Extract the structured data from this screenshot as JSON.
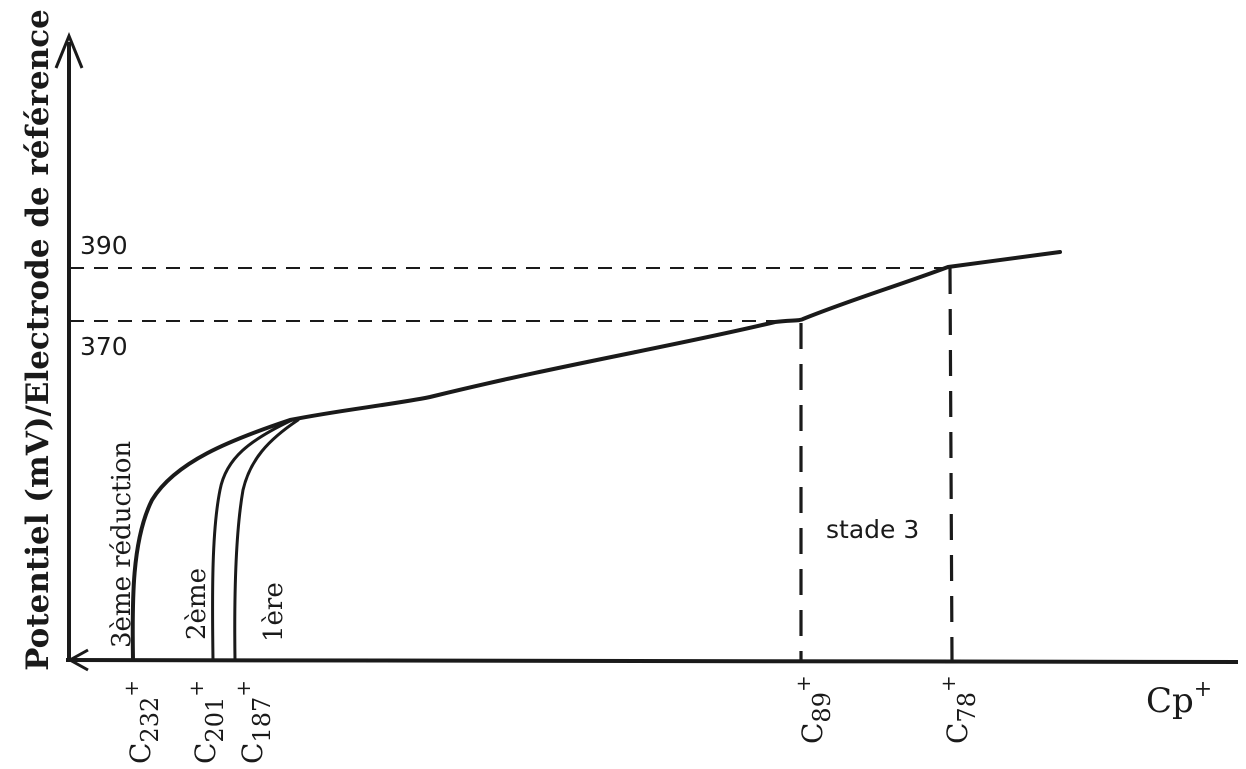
{
  "chart_data": {
    "type": "line",
    "ylabel": "Potentiel (mV)/Electrode de référence",
    "xlabel": "Cp",
    "xlabel_sup": "+",
    "y_ticks": [
      {
        "value": 390,
        "label": "390"
      },
      {
        "value": 370,
        "label": "370"
      }
    ],
    "x_ticks": [
      {
        "id": "c232",
        "base": "C",
        "sub": "232",
        "sup": "+"
      },
      {
        "id": "c201",
        "base": "C",
        "sub": "201",
        "sup": "+"
      },
      {
        "id": "c187",
        "base": "C",
        "sub": "187",
        "sup": "+"
      },
      {
        "id": "c89",
        "base": "C",
        "sub": "89",
        "sup": "+"
      },
      {
        "id": "c78",
        "base": "C",
        "sub": "78",
        "sup": "+"
      }
    ],
    "curve_labels": {
      "third": "3ème réduction",
      "second": "2ème",
      "first": "1ère"
    },
    "annotation": "stade 3",
    "grid": false,
    "legend": "none"
  }
}
